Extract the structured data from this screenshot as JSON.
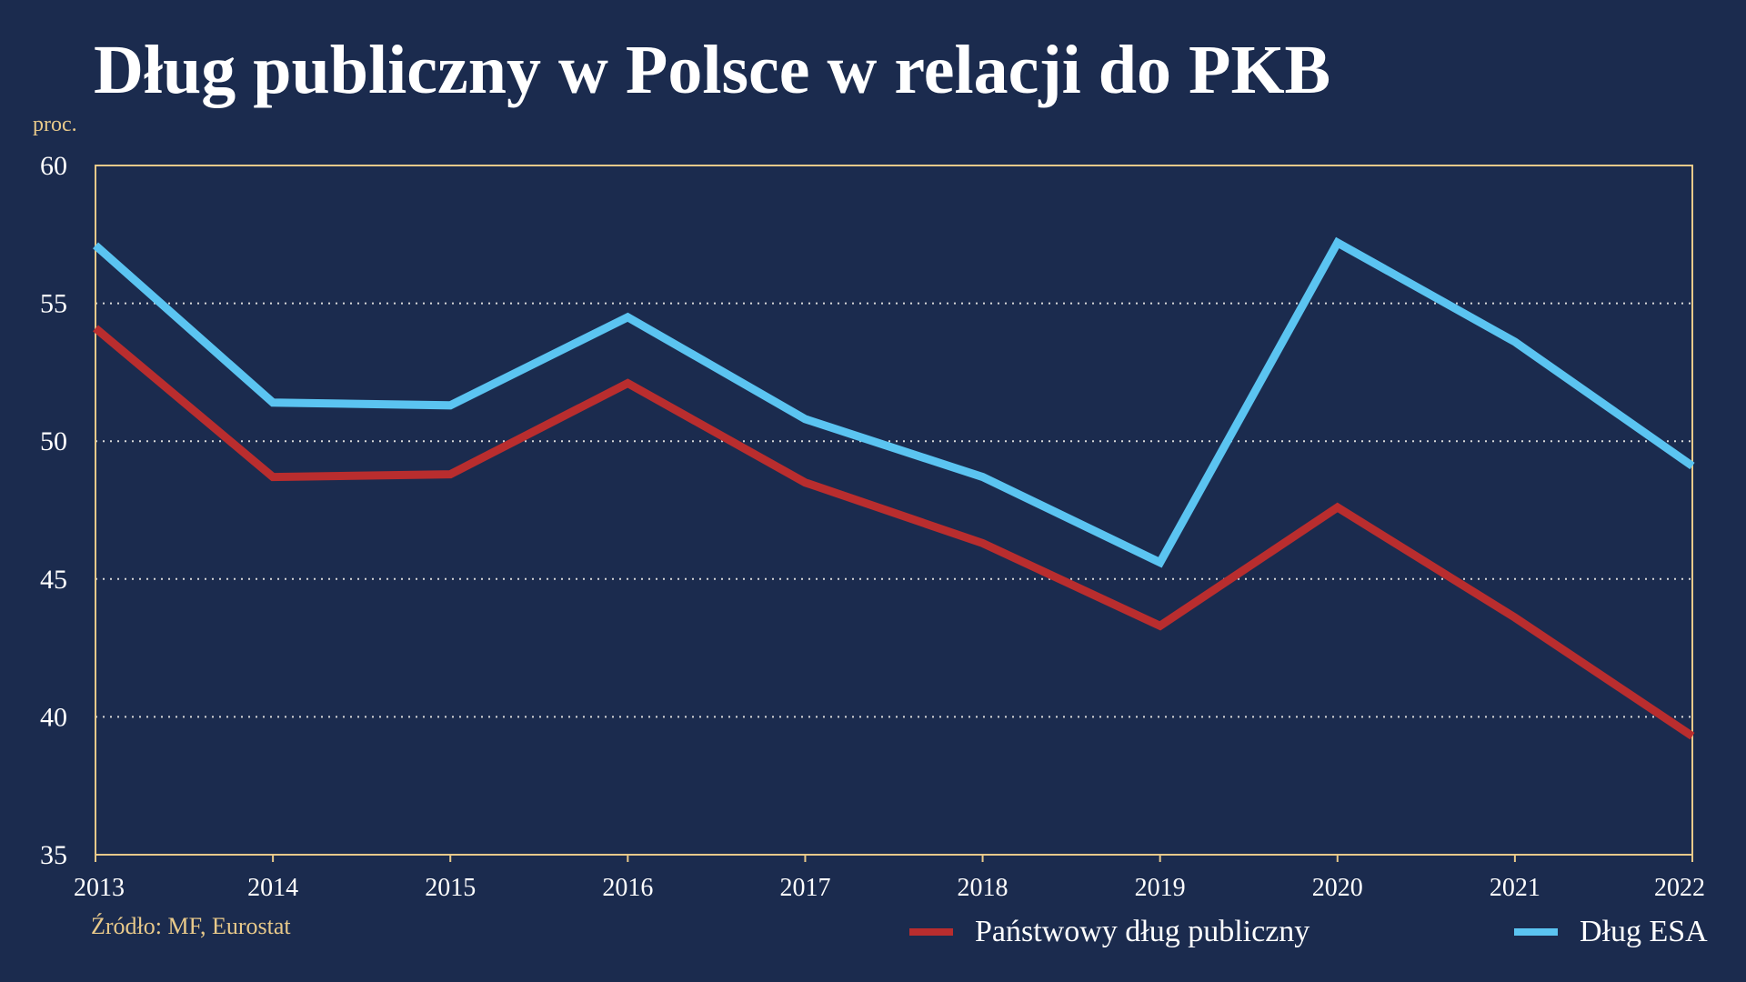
{
  "chart_data": {
    "type": "line",
    "title": "Dług publiczny w Polsce w relacji do PKB",
    "ylabel": "proc.",
    "xlabel": "",
    "x": [
      "2013",
      "2014",
      "2015",
      "2016",
      "2017",
      "2018",
      "2019",
      "2020",
      "2021",
      "2022"
    ],
    "ylim": [
      35,
      60
    ],
    "yticks": [
      "35",
      "40",
      "45",
      "50",
      "55",
      "60"
    ],
    "grid": "dotted horizontal",
    "legend_position": "bottom-right",
    "series": [
      {
        "name": "Państwowy dług publiczny",
        "color": "#b92d2e",
        "values": [
          54.1,
          48.7,
          48.8,
          52.1,
          48.5,
          46.3,
          43.3,
          47.6,
          43.6,
          39.3
        ]
      },
      {
        "name": "Dług ESA",
        "color": "#5bc4f1",
        "values": [
          57.1,
          51.4,
          51.3,
          54.5,
          50.8,
          48.7,
          45.6,
          57.2,
          53.6,
          49.1
        ]
      }
    ]
  },
  "source": "Źródło: MF, Eurostat",
  "colors": {
    "background": "#1b2b4e",
    "axis": "#e8c98a",
    "text": "#ffffff"
  }
}
